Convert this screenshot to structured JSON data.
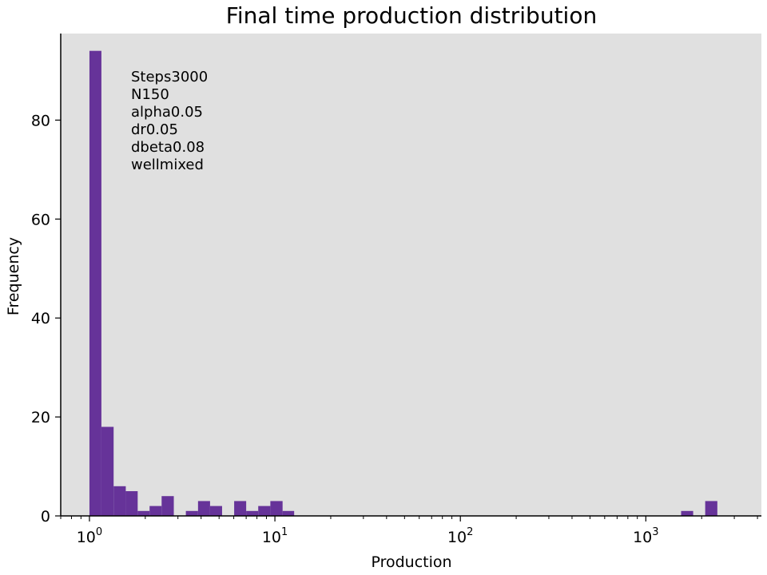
{
  "chart_data": {
    "type": "bar",
    "title": "Final time production distribution",
    "xlabel": "Production",
    "ylabel": "Frequency",
    "x_scale": "log",
    "xlim": [
      0.7,
      4200
    ],
    "ylim": [
      0,
      97.5
    ],
    "grid": false,
    "background_color": "#e0e0e0",
    "bar_color": "#663399",
    "x_ticks": [
      {
        "value": 1,
        "base": "10",
        "exp": "0"
      },
      {
        "value": 10,
        "base": "10",
        "exp": "1"
      },
      {
        "value": 100,
        "base": "10",
        "exp": "2"
      },
      {
        "value": 1000,
        "base": "10",
        "exp": "3"
      }
    ],
    "y_ticks": [
      0,
      20,
      40,
      60,
      80
    ],
    "bins": [
      {
        "x0": 1.0,
        "x1": 1.16,
        "count": 94
      },
      {
        "x0": 1.16,
        "x1": 1.35,
        "count": 18
      },
      {
        "x0": 1.35,
        "x1": 1.57,
        "count": 6
      },
      {
        "x0": 1.57,
        "x1": 1.82,
        "count": 5
      },
      {
        "x0": 1.82,
        "x1": 2.11,
        "count": 1
      },
      {
        "x0": 2.11,
        "x1": 2.45,
        "count": 2
      },
      {
        "x0": 2.45,
        "x1": 2.85,
        "count": 4
      },
      {
        "x0": 3.31,
        "x1": 3.85,
        "count": 1
      },
      {
        "x0": 3.85,
        "x1": 4.47,
        "count": 3
      },
      {
        "x0": 4.47,
        "x1": 5.19,
        "count": 2
      },
      {
        "x0": 6.03,
        "x1": 7.0,
        "count": 3
      },
      {
        "x0": 7.0,
        "x1": 8.13,
        "count": 1
      },
      {
        "x0": 8.13,
        "x1": 9.45,
        "count": 2
      },
      {
        "x0": 9.45,
        "x1": 11.0,
        "count": 3
      },
      {
        "x0": 11.0,
        "x1": 12.7,
        "count": 1
      },
      {
        "x0": 1550,
        "x1": 1800,
        "count": 1
      },
      {
        "x0": 2090,
        "x1": 2430,
        "count": 3
      }
    ],
    "annotation_lines": [
      "Steps3000",
      "N150",
      "alpha0.05",
      "dr0.05",
      "dbeta0.08",
      "wellmixed"
    ]
  }
}
